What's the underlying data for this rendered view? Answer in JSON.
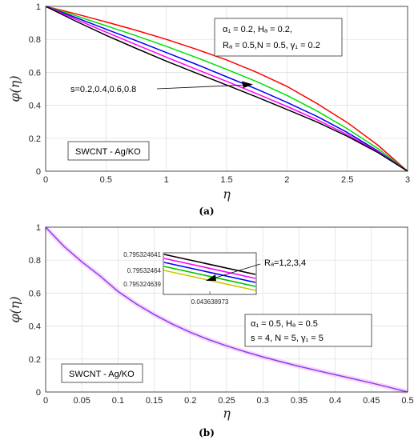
{
  "chart_data": [
    {
      "type": "line",
      "panel_label": "(a)",
      "xlabel": "η",
      "ylabel": "φ(η)",
      "xlim": [
        0,
        3
      ],
      "ylim": [
        0,
        1
      ],
      "xticks": [
        "0",
        "0.5",
        "1",
        "1.5",
        "2",
        "2.5",
        "3"
      ],
      "yticks": [
        "0",
        "0.2",
        "0.4",
        "0.6",
        "0.8",
        "1"
      ],
      "grid": true,
      "params_lines": [
        "α₁ = 0.2, Hₐ = 0.2,",
        "Rₐ = 0.5,N = 0.5, γ₁ = 0.2"
      ],
      "arrow_label": "s=0.2,0.4,0.6,0.8",
      "box_label": "SWCNT - Ag/KO",
      "x": [
        0,
        0.25,
        0.5,
        0.75,
        1,
        1.25,
        1.5,
        1.75,
        2,
        2.25,
        2.5,
        2.75,
        3
      ],
      "series": [
        {
          "color": "#ff0000",
          "values": [
            1.0,
            0.955,
            0.906,
            0.855,
            0.8,
            0.74,
            0.675,
            0.6,
            0.515,
            0.41,
            0.295,
            0.16,
            0.0
          ]
        },
        {
          "color": "#00e000",
          "values": [
            1.0,
            0.943,
            0.883,
            0.822,
            0.758,
            0.69,
            0.618,
            0.543,
            0.46,
            0.365,
            0.258,
            0.14,
            0.0
          ]
        },
        {
          "color": "#0000ff",
          "values": [
            1.0,
            0.932,
            0.862,
            0.792,
            0.72,
            0.648,
            0.573,
            0.498,
            0.418,
            0.332,
            0.235,
            0.125,
            0.0
          ]
        },
        {
          "color": "#ff00ff",
          "values": [
            1.0,
            0.922,
            0.844,
            0.768,
            0.692,
            0.618,
            0.545,
            0.47,
            0.393,
            0.312,
            0.222,
            0.12,
            0.0
          ]
        },
        {
          "color": "#000000",
          "values": [
            1.0,
            0.91,
            0.825,
            0.745,
            0.668,
            0.595,
            0.523,
            0.45,
            0.375,
            0.298,
            0.212,
            0.115,
            0.0
          ]
        }
      ]
    },
    {
      "type": "line",
      "panel_label": "(b)",
      "xlabel": "η",
      "ylabel": "φ(η)",
      "xlim": [
        0,
        0.5
      ],
      "ylim": [
        0,
        1
      ],
      "xticks": [
        "0",
        "0.05",
        "0.1",
        "0.15",
        "0.2",
        "0.25",
        "0.3",
        "0.35",
        "0.4",
        "0.45",
        "0.5"
      ],
      "yticks": [
        "0",
        "0.2",
        "0.4",
        "0.6",
        "0.8",
        "1"
      ],
      "grid": true,
      "params_lines": [
        "α₁ = 0.5, Hₐ = 0.5",
        "s = 4, N = 5, γ₁ = 5"
      ],
      "arrow_label": "Rₐ=1,2,3,4",
      "box_label": "SWCNT - Ag/KO",
      "x": [
        0,
        0.025,
        0.05,
        0.075,
        0.1,
        0.125,
        0.15,
        0.175,
        0.2,
        0.225,
        0.25,
        0.275,
        0.3,
        0.325,
        0.35,
        0.375,
        0.4,
        0.425,
        0.45,
        0.475,
        0.5
      ],
      "series": [
        {
          "color": "#8a3ff0",
          "values": [
            1.0,
            0.885,
            0.79,
            0.705,
            0.61,
            0.535,
            0.47,
            0.412,
            0.362,
            0.318,
            0.28,
            0.245,
            0.213,
            0.184,
            0.156,
            0.13,
            0.105,
            0.08,
            0.055,
            0.028,
            0.0
          ]
        }
      ],
      "inset": {
        "yticks": [
          "0.795324641",
          "0.79532464",
          "0.795324639"
        ],
        "xtick": "0.043638973",
        "line_colors": [
          "#000000",
          "#ff00ff",
          "#0000ff",
          "#00c000",
          "#c8c800"
        ]
      }
    }
  ]
}
